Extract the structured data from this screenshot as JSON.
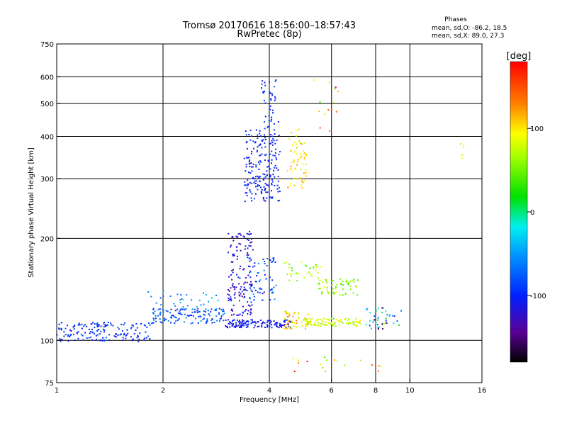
{
  "header": {
    "title": "Tromsø 20170616 18:56:00–18:57:43",
    "subtitle": "RwPretec (8p)",
    "phases_label": "Phases",
    "stats_o": "mean, sd,O: -86.2, 18.5",
    "stats_x": "mean, sd,X:  89.0, 27.3"
  },
  "colorbar": {
    "unit_label": "[deg]",
    "ticks": [
      {
        "value": 100,
        "label": "100"
      },
      {
        "value": 0,
        "label": "0"
      },
      {
        "value": -100,
        "label": "-100"
      }
    ],
    "range": [
      -180,
      180
    ]
  },
  "chart_data": {
    "type": "scatter",
    "xlabel": "Frequency [MHz]",
    "ylabel": "Stationary phase Virtual Height [km]",
    "x_scale": "log",
    "y_scale": "log",
    "xlim": [
      1,
      16
    ],
    "ylim": [
      75,
      750
    ],
    "x_ticks": [
      {
        "value": 1,
        "label": "1"
      },
      {
        "value": 2,
        "label": "2"
      },
      {
        "value": 4,
        "label": "4"
      },
      {
        "value": 6,
        "label": "6"
      },
      {
        "value": 8,
        "label": "8"
      },
      {
        "value": 10,
        "label": "10"
      },
      {
        "value": 16,
        "label": "16"
      }
    ],
    "y_ticks": [
      {
        "value": 75,
        "label": "75"
      },
      {
        "value": 100,
        "label": "100"
      },
      {
        "value": 200,
        "label": "200"
      },
      {
        "value": 300,
        "label": "300"
      },
      {
        "value": 400,
        "label": "400"
      },
      {
        "value": 500,
        "label": "500"
      },
      {
        "value": 600,
        "label": "600"
      },
      {
        "value": 750,
        "label": "750"
      }
    ],
    "x_gridlines": [
      2,
      4,
      6,
      8,
      10
    ],
    "y_gridlines": [
      100,
      200,
      300,
      400,
      500,
      600
    ],
    "grid": true,
    "clusters": [
      {
        "f0": 1.0,
        "f1": 1.85,
        "h0": 99,
        "h1": 113,
        "phase": -95,
        "sd": 12,
        "count": 160
      },
      {
        "f0": 1.85,
        "f1": 3.0,
        "h0": 112,
        "h1": 124,
        "phase": -80,
        "sd": 15,
        "count": 130
      },
      {
        "f0": 3.0,
        "f1": 4.6,
        "h0": 109,
        "h1": 115,
        "phase": -110,
        "sd": 10,
        "count": 140
      },
      {
        "f0": 3.05,
        "f1": 3.6,
        "h0": 118,
        "h1": 210,
        "phase": -120,
        "sd": 15,
        "count": 150
      },
      {
        "f0": 3.4,
        "f1": 4.3,
        "h0": 255,
        "h1": 420,
        "phase": -100,
        "sd": 10,
        "count": 200
      },
      {
        "f0": 3.8,
        "f1": 4.25,
        "h0": 420,
        "h1": 590,
        "phase": -100,
        "sd": 10,
        "count": 40
      },
      {
        "f0": 3.5,
        "f1": 4.2,
        "h0": 130,
        "h1": 175,
        "phase": -80,
        "sd": 18,
        "count": 60
      },
      {
        "f0": 4.5,
        "f1": 5.1,
        "h0": 280,
        "h1": 420,
        "phase": 100,
        "sd": 15,
        "count": 60
      },
      {
        "f0": 4.4,
        "f1": 5.2,
        "h0": 108,
        "h1": 122,
        "phase": 105,
        "sd": 18,
        "count": 50
      },
      {
        "f0": 5.0,
        "f1": 7.3,
        "h0": 110,
        "h1": 116,
        "phase": 80,
        "sd": 20,
        "count": 90
      },
      {
        "f0": 5.5,
        "f1": 7.2,
        "h0": 136,
        "h1": 152,
        "phase": 60,
        "sd": 15,
        "count": 60
      },
      {
        "f0": 4.4,
        "f1": 5.6,
        "h0": 150,
        "h1": 172,
        "phase": 60,
        "sd": 20,
        "count": 35
      },
      {
        "f0": 7.5,
        "f1": 9.5,
        "h0": 108,
        "h1": 125,
        "phase": -60,
        "sd": 60,
        "count": 40
      },
      {
        "f0": 4.6,
        "f1": 8.5,
        "h0": 80,
        "h1": 90,
        "phase": 110,
        "sd": 40,
        "count": 18
      },
      {
        "f0": 5.3,
        "f1": 6.5,
        "h0": 390,
        "h1": 600,
        "phase": 120,
        "sd": 40,
        "count": 14
      },
      {
        "f0": 13.8,
        "f1": 14.2,
        "h0": 335,
        "h1": 425,
        "phase": 80,
        "sd": 10,
        "count": 5
      },
      {
        "f0": 1.8,
        "f1": 2.9,
        "h0": 125,
        "h1": 140,
        "phase": -55,
        "sd": 15,
        "count": 30
      }
    ]
  }
}
